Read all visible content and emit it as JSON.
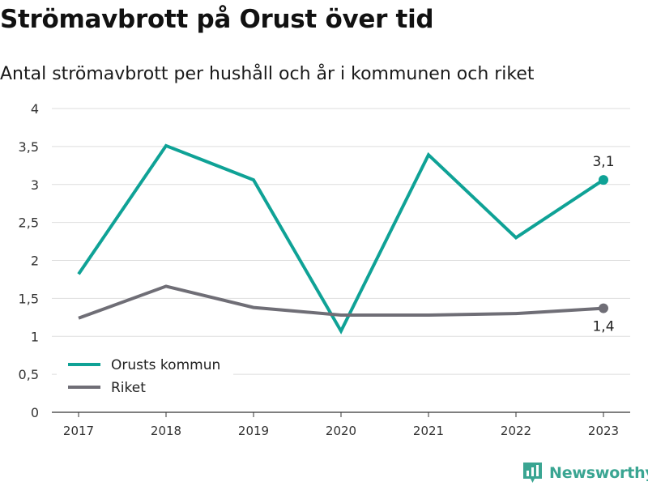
{
  "title": "Strömavbrott på Orust över tid",
  "subtitle": "Antal strömavbrott per hushåll och år i kommunen och riket",
  "brand": {
    "name": "Newsworthy",
    "icon": "newsworthy-logo-icon"
  },
  "colors": {
    "orust": "#0fa296",
    "riket": "#6f6e76",
    "grid": "#dedede",
    "axis": "#333333"
  },
  "chart_data": {
    "type": "line",
    "categories": [
      "2017",
      "2018",
      "2019",
      "2020",
      "2021",
      "2022",
      "2023"
    ],
    "ylim": [
      0,
      4
    ],
    "yticks": [
      0,
      0.5,
      1,
      1.5,
      2,
      2.5,
      3,
      3.5,
      4
    ],
    "ytick_labels": [
      "0",
      "0,5",
      "1",
      "1,5",
      "2",
      "2,5",
      "3",
      "3,5",
      "4"
    ],
    "grid": true,
    "legend_position": "bottom-left",
    "series": [
      {
        "name": "Orusts kommun",
        "values": [
          1.82,
          3.51,
          3.06,
          1.07,
          3.39,
          2.3,
          3.06
        ],
        "end_label": "3,1",
        "end_label_position": "above"
      },
      {
        "name": "Riket",
        "values": [
          1.24,
          1.66,
          1.38,
          1.28,
          1.28,
          1.3,
          1.37
        ],
        "end_label": "1,4",
        "end_label_position": "below"
      }
    ]
  }
}
